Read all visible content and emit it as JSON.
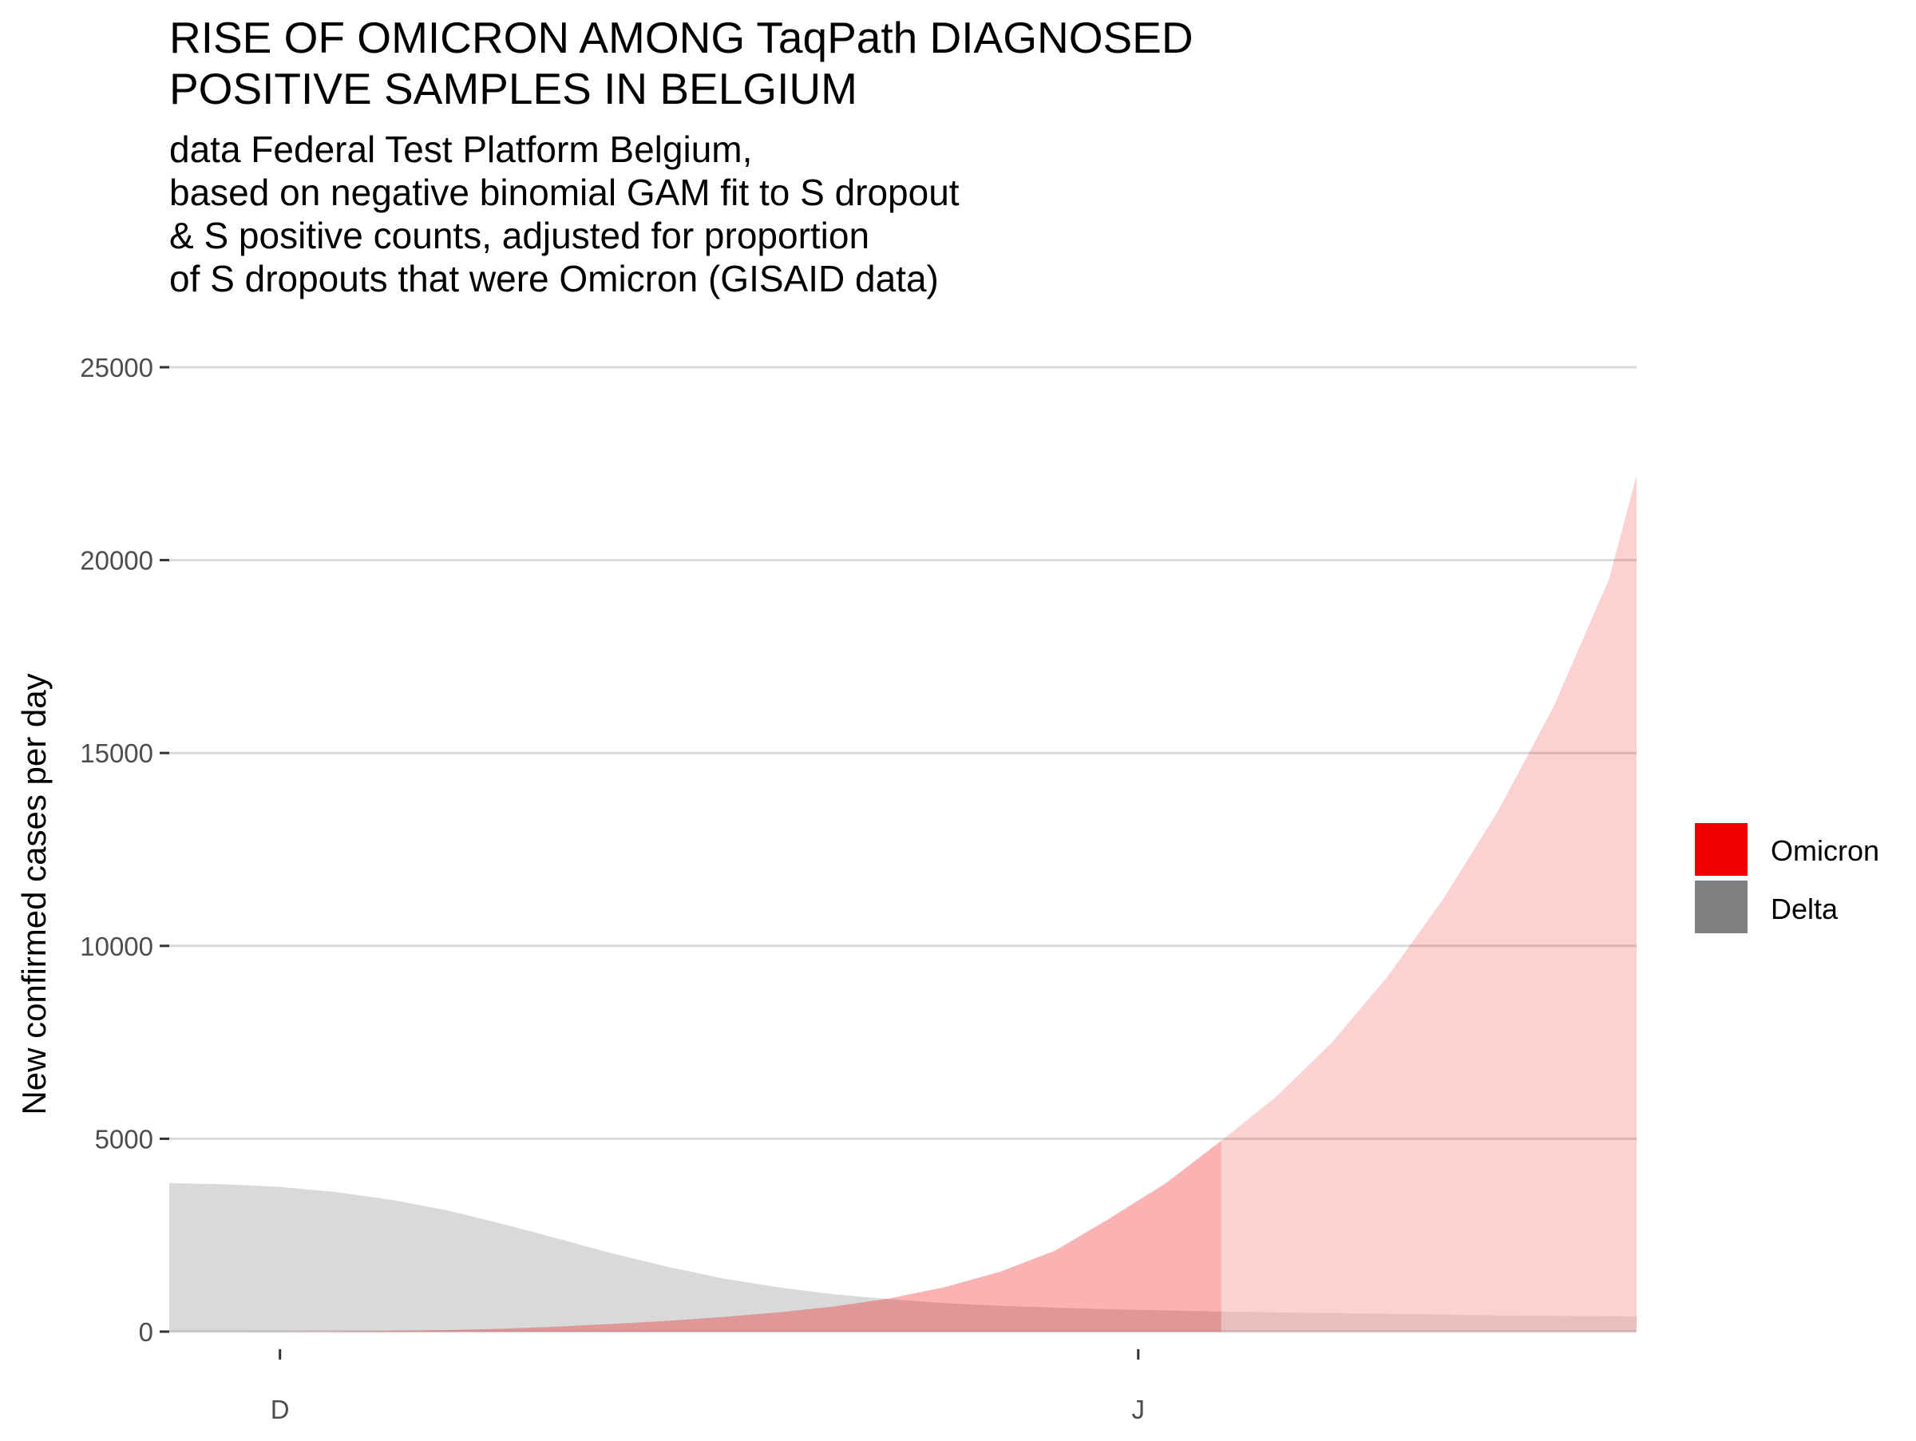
{
  "chart_data": {
    "type": "area",
    "title_lines": [
      "RISE OF OMICRON AMONG TaqPath DIAGNOSED",
      "POSITIVE SAMPLES IN BELGIUM"
    ],
    "subtitle_lines": [
      "data Federal Test Platform Belgium,",
      "based on negative binomial GAM fit to S dropout",
      "& S positive counts, adjusted for proportion",
      "of S dropouts that were Omicron (GISAID data)"
    ],
    "xlabel": "",
    "ylabel": "New confirmed cases per day",
    "ylim": [
      0,
      25000
    ],
    "y_ticks": [
      0,
      5000,
      10000,
      15000,
      20000,
      25000
    ],
    "y_tick_labels": [
      "0",
      "5000",
      "10000",
      "15000",
      "20000",
      "25000"
    ],
    "x_ticks": [
      "2021-12-01",
      "2022-01-01"
    ],
    "x_tick_labels": [
      "D",
      "J"
    ],
    "x_range": [
      "2021-11-27",
      "2022-01-19"
    ],
    "stacked": false,
    "projection_start": "2022-01-04",
    "grid": true,
    "legend_position": "right",
    "x": [
      "2021-11-27",
      "2021-11-29",
      "2021-12-01",
      "2021-12-03",
      "2021-12-05",
      "2021-12-07",
      "2021-12-09",
      "2021-12-11",
      "2021-12-13",
      "2021-12-15",
      "2021-12-17",
      "2021-12-19",
      "2021-12-21",
      "2021-12-23",
      "2021-12-25",
      "2021-12-27",
      "2021-12-29",
      "2021-12-31",
      "2022-01-02",
      "2022-01-04",
      "2022-01-06",
      "2022-01-08",
      "2022-01-10",
      "2022-01-12",
      "2022-01-14",
      "2022-01-16",
      "2022-01-18",
      "2022-01-19"
    ],
    "series": [
      {
        "name": "Omicron",
        "color": "#f00000",
        "values": [
          0,
          2,
          5,
          10,
          20,
          40,
          75,
          130,
          200,
          280,
          380,
          500,
          650,
          860,
          1150,
          1550,
          2100,
          2950,
          3850,
          4950,
          6100,
          7500,
          9200,
          11200,
          13500,
          16200,
          19500,
          22200
        ]
      },
      {
        "name": "Delta",
        "color": "#808080",
        "values": [
          3850,
          3820,
          3750,
          3620,
          3420,
          3150,
          2800,
          2420,
          2030,
          1680,
          1380,
          1150,
          970,
          840,
          740,
          670,
          620,
          580,
          550,
          520,
          500,
          480,
          460,
          440,
          420,
          410,
          400,
          390
        ]
      }
    ]
  }
}
